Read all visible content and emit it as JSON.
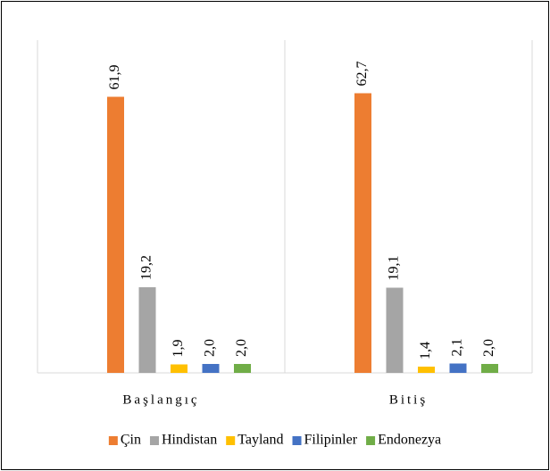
{
  "chart_data": {
    "type": "bar",
    "categories": [
      "Başlangıç",
      "Bitiş"
    ],
    "series": [
      {
        "name": "Çin",
        "color": "#ED7D31",
        "values": [
          61.9,
          62.7
        ],
        "value_labels": [
          "61,9",
          "62,7"
        ]
      },
      {
        "name": "Hindistan",
        "color": "#A5A5A5",
        "values": [
          19.2,
          19.1
        ],
        "value_labels": [
          "19,2",
          "19,1"
        ]
      },
      {
        "name": "Tayland",
        "color": "#FFC000",
        "values": [
          1.9,
          1.4
        ],
        "value_labels": [
          "1,9",
          "1,4"
        ]
      },
      {
        "name": "Filipinler",
        "color": "#4472C4",
        "values": [
          2.0,
          2.1
        ],
        "value_labels": [
          "2,0",
          "2,1"
        ]
      },
      {
        "name": "Endonezya",
        "color": "#70AD47",
        "values": [
          2.0,
          2.0
        ],
        "value_labels": [
          "2,0",
          "2,0"
        ]
      }
    ],
    "legend": "bottom"
  }
}
